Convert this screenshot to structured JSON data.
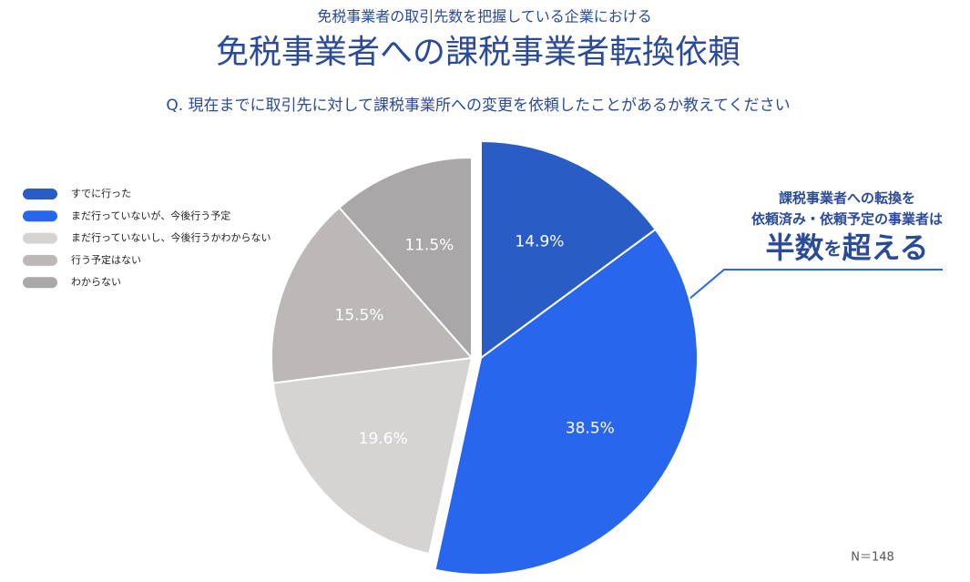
{
  "chart_data": {
    "type": "pie",
    "subtitle": "免税事業者の取引先数を把握している企業における",
    "title": "免税事業者への課税事業者転換依頼",
    "question": "Q. 現在までに取引先に対して課税事業所への変更を依頼したことがあるか教えてください",
    "categories": [
      "すでに行った",
      "まだ行っていないが、今後行う予定",
      "まだ行っていないし、今後行うかわからない",
      "行う予定はない",
      "わからない"
    ],
    "values": [
      14.9,
      38.5,
      19.6,
      15.5,
      11.5
    ],
    "value_labels": [
      "14.9%",
      "38.5%",
      "19.6%",
      "15.5%",
      "11.5%"
    ],
    "colors": [
      "#2a5cc6",
      "#2866ee",
      "#d6d3d3",
      "#bcb8b8",
      "#a9a7a7"
    ],
    "exploded": [
      true,
      true,
      false,
      false,
      false
    ],
    "legend": "left",
    "annotation": [
      "課税事業者への転換を",
      "依頼済み・依頼予定の事業者は"
    ],
    "highlight": [
      "半数",
      "を",
      "超える"
    ],
    "note": "N＝148"
  }
}
